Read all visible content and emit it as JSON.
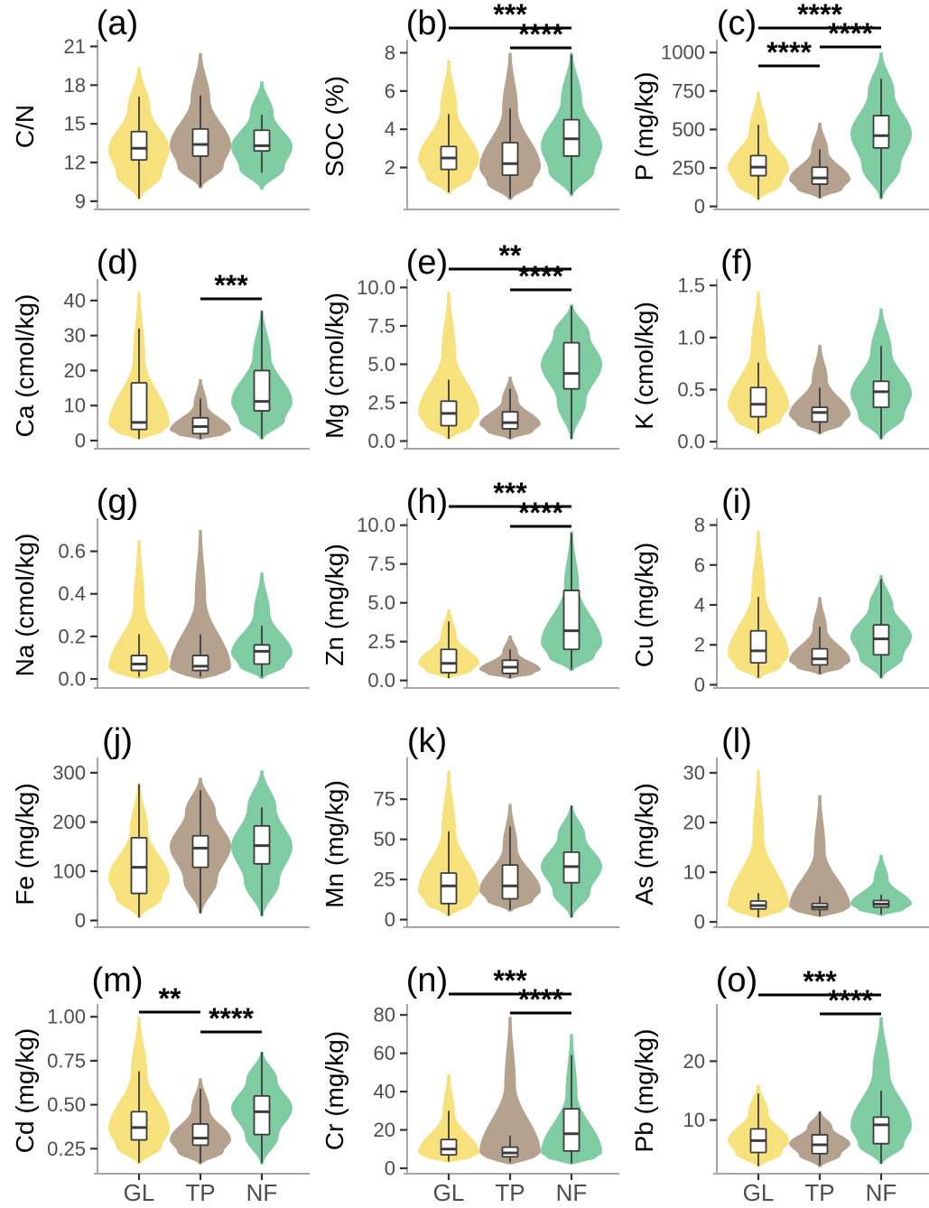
{
  "figure": {
    "groups": [
      "GL",
      "TP",
      "NF"
    ],
    "group_colors": {
      "GL": "#F6E17C",
      "TP": "#B4A18E",
      "NF": "#7FCBA2"
    },
    "x_axis_labels": [
      "GL",
      "TP",
      "NF"
    ],
    "style_colors": {
      "axis_line": "#A6A6A6",
      "tick_mark": "#333333",
      "tick_text": "#4D4D4D",
      "box_stroke": "#3C3C3C",
      "sig_bar": "#000000"
    }
  },
  "chart_data": [
    {
      "id": "a",
      "type": "violin",
      "label": "(a)",
      "ylabel": "C/N",
      "categories": [
        "GL",
        "TP",
        "NF"
      ],
      "yticks": [
        9,
        12,
        15,
        18,
        21
      ],
      "ytick_labels": [
        "9",
        "12",
        "15",
        "18",
        "21"
      ],
      "ylim": [
        8.5,
        21.1
      ],
      "stats": [
        {
          "vmin": 9.1,
          "vmax": 19.4,
          "peak": 13.0,
          "whisker_lo": 9.2,
          "q1": 12.2,
          "median": 13.1,
          "q3": 14.4,
          "whisker_hi": 17.1
        },
        {
          "vmin": 10.0,
          "vmax": 20.5,
          "peak": 13.3,
          "whisker_lo": 10.1,
          "q1": 12.5,
          "median": 13.4,
          "q3": 14.6,
          "whisker_hi": 17.2
        },
        {
          "vmin": 9.9,
          "vmax": 18.3,
          "peak": 13.2,
          "whisker_lo": 11.2,
          "q1": 12.9,
          "median": 13.3,
          "q3": 14.5,
          "whisker_hi": 15.7
        }
      ],
      "significance": []
    },
    {
      "id": "b",
      "type": "violin",
      "label": "(b)",
      "ylabel": "SOC (%)",
      "categories": [
        "GL",
        "TP",
        "NF"
      ],
      "yticks": [
        2,
        4,
        6,
        8
      ],
      "ytick_labels": [
        "2",
        "4",
        "6",
        "8"
      ],
      "ylim": [
        -0.1,
        8.4
      ],
      "stats": [
        {
          "vmin": 0.6,
          "vmax": 7.6,
          "peak": 2.4,
          "whisker_lo": 0.7,
          "q1": 1.9,
          "median": 2.5,
          "q3": 3.1,
          "whisker_hi": 4.8
        },
        {
          "vmin": 0.3,
          "vmax": 8.0,
          "peak": 2.0,
          "whisker_lo": 0.4,
          "q1": 1.6,
          "median": 2.2,
          "q3": 3.3,
          "whisker_hi": 5.1
        },
        {
          "vmin": 0.5,
          "vmax": 8.0,
          "peak": 3.1,
          "whisker_lo": 0.6,
          "q1": 2.6,
          "median": 3.5,
          "q3": 4.5,
          "whisker_hi": 7.9
        }
      ],
      "significance": [
        {
          "from": 0,
          "to": 2,
          "stars": "***",
          "bar_y": 31
        },
        {
          "from": 1,
          "to": 2,
          "stars": "****",
          "bar_y": 53
        }
      ]
    },
    {
      "id": "c",
      "type": "violin",
      "label": "(c)",
      "ylabel": "P (mg/kg)",
      "categories": [
        "GL",
        "TP",
        "NF"
      ],
      "yticks": [
        0,
        250,
        500,
        750,
        1000
      ],
      "ytick_labels": [
        "0",
        "250",
        "500",
        "750",
        "1000"
      ],
      "ylim": [
        -8,
        1048
      ],
      "stats": [
        {
          "vmin": 40,
          "vmax": 745,
          "peak": 245,
          "whisker_lo": 45,
          "q1": 200,
          "median": 255,
          "q3": 330,
          "whisker_hi": 530
        },
        {
          "vmin": 50,
          "vmax": 545,
          "peak": 175,
          "whisker_lo": 55,
          "q1": 145,
          "median": 185,
          "q3": 255,
          "whisker_hi": 370
        },
        {
          "vmin": 45,
          "vmax": 1000,
          "peak": 470,
          "whisker_lo": 55,
          "q1": 380,
          "median": 460,
          "q3": 590,
          "whisker_hi": 830
        }
      ],
      "significance": [
        {
          "from": 0,
          "to": 2,
          "stars": "****",
          "bar_y": 31
        },
        {
          "from": 1,
          "to": 2,
          "stars": "****",
          "bar_y": 52
        },
        {
          "from": 0,
          "to": 1,
          "stars": "****",
          "bar_y": 73
        }
      ]
    },
    {
      "id": "d",
      "type": "violin",
      "label": "(d)",
      "ylabel": "Ca (cmol/kg)",
      "categories": [
        "GL",
        "TP",
        "NF"
      ],
      "yticks": [
        0,
        10,
        20,
        30,
        40
      ],
      "ytick_labels": [
        "0",
        "10",
        "20",
        "30",
        "40"
      ],
      "ylim": [
        -1.8,
        44.6
      ],
      "stats": [
        {
          "vmin": 0.3,
          "vmax": 42.5,
          "peak": 4.5,
          "whisker_lo": 0.5,
          "q1": 3.2,
          "median": 5.2,
          "q3": 16.5,
          "whisker_hi": 32
        },
        {
          "vmin": 0.3,
          "vmax": 17.5,
          "peak": 3.0,
          "whisker_lo": 0.5,
          "q1": 2.0,
          "median": 4.0,
          "q3": 6.5,
          "whisker_hi": 12
        },
        {
          "vmin": 0.3,
          "vmax": 37.2,
          "peak": 11.0,
          "whisker_lo": 0.6,
          "q1": 8.5,
          "median": 11.2,
          "q3": 20.0,
          "whisker_hi": 37
        }
      ],
      "significance": [
        {
          "from": 1,
          "to": 2,
          "stars": "***",
          "bar_y": 66
        }
      ]
    },
    {
      "id": "e",
      "type": "violin",
      "label": "(e)",
      "ylabel": "Mg (cmol/kg)",
      "categories": [
        "GL",
        "TP",
        "NF"
      ],
      "yticks": [
        0,
        2.5,
        5,
        7.5,
        10
      ],
      "ytick_labels": [
        "0.0",
        "2.5",
        "5.0",
        "7.5",
        "10.0"
      ],
      "ylim": [
        -0.38,
        10.2
      ],
      "stats": [
        {
          "vmin": 0.1,
          "vmax": 9.7,
          "peak": 1.8,
          "whisker_lo": 0.15,
          "q1": 1.0,
          "median": 1.8,
          "q3": 2.6,
          "whisker_hi": 4.0
        },
        {
          "vmin": 0.1,
          "vmax": 4.2,
          "peak": 1.1,
          "whisker_lo": 0.15,
          "q1": 0.8,
          "median": 1.2,
          "q3": 1.9,
          "whisker_hi": 3.4
        },
        {
          "vmin": 0.1,
          "vmax": 8.9,
          "peak": 5.0,
          "whisker_lo": 0.15,
          "q1": 3.4,
          "median": 4.4,
          "q3": 6.4,
          "whisker_hi": 8.8
        }
      ],
      "significance": [
        {
          "from": 0,
          "to": 2,
          "stars": "**",
          "bar_y": 33
        },
        {
          "from": 1,
          "to": 2,
          "stars": "****",
          "bar_y": 56
        }
      ]
    },
    {
      "id": "f",
      "type": "violin",
      "label": "(f)",
      "ylabel": "K (cmol/kg)",
      "categories": [
        "GL",
        "TP",
        "NF"
      ],
      "yticks": [
        0,
        0.5,
        1,
        1.5
      ],
      "ytick_labels": [
        "0.0",
        "0.5",
        "1.0",
        "1.5"
      ],
      "ylim": [
        -0.05,
        1.51
      ],
      "stats": [
        {
          "vmin": 0.07,
          "vmax": 1.44,
          "peak": 0.34,
          "whisker_lo": 0.08,
          "q1": 0.24,
          "median": 0.36,
          "q3": 0.52,
          "whisker_hi": 0.76
        },
        {
          "vmin": 0.07,
          "vmax": 0.93,
          "peak": 0.26,
          "whisker_lo": 0.08,
          "q1": 0.19,
          "median": 0.28,
          "q3": 0.33,
          "whisker_hi": 0.52
        },
        {
          "vmin": 0.02,
          "vmax": 1.28,
          "peak": 0.46,
          "whisker_lo": 0.03,
          "q1": 0.33,
          "median": 0.48,
          "q3": 0.58,
          "whisker_hi": 0.92
        }
      ],
      "significance": []
    },
    {
      "id": "g",
      "type": "violin",
      "label": "(g)",
      "ylabel": "Na (cmol/kg)",
      "categories": [
        "GL",
        "TP",
        "NF"
      ],
      "yticks": [
        0,
        0.2,
        0.4,
        0.6
      ],
      "ytick_labels": [
        "0.0",
        "0.2",
        "0.4",
        "0.6"
      ],
      "ylim": [
        -0.034,
        0.73
      ],
      "stats": [
        {
          "vmin": 0.0,
          "vmax": 0.65,
          "peak": 0.05,
          "whisker_lo": 0.01,
          "q1": 0.04,
          "median": 0.07,
          "q3": 0.11,
          "whisker_hi": 0.21
        },
        {
          "vmin": 0.0,
          "vmax": 0.7,
          "peak": 0.05,
          "whisker_lo": 0.01,
          "q1": 0.04,
          "median": 0.06,
          "q3": 0.11,
          "whisker_hi": 0.21
        },
        {
          "vmin": 0.0,
          "vmax": 0.5,
          "peak": 0.12,
          "whisker_lo": 0.01,
          "q1": 0.07,
          "median": 0.13,
          "q3": 0.16,
          "whisker_hi": 0.25
        }
      ],
      "significance": []
    },
    {
      "id": "h",
      "type": "violin",
      "label": "(h)",
      "ylabel": "Zn (mg/kg)",
      "categories": [
        "GL",
        "TP",
        "NF"
      ],
      "yticks": [
        0,
        2.5,
        5,
        7.5,
        10
      ],
      "ytick_labels": [
        "0.0",
        "2.5",
        "5.0",
        "7.5",
        "10.0"
      ],
      "ylim": [
        -0.37,
        10.1
      ],
      "stats": [
        {
          "vmin": 0.1,
          "vmax": 4.6,
          "peak": 1.1,
          "whisker_lo": 0.15,
          "q1": 0.5,
          "median": 1.1,
          "q3": 2.0,
          "whisker_hi": 3.8
        },
        {
          "vmin": 0.1,
          "vmax": 2.9,
          "peak": 0.7,
          "whisker_lo": 0.15,
          "q1": 0.45,
          "median": 0.85,
          "q3": 1.3,
          "whisker_hi": 2.0
        },
        {
          "vmin": 0.6,
          "vmax": 9.6,
          "peak": 2.4,
          "whisker_lo": 0.7,
          "q1": 2.0,
          "median": 3.2,
          "q3": 5.8,
          "whisker_hi": 9.5
        }
      ],
      "significance": [
        {
          "from": 0,
          "to": 2,
          "stars": "***",
          "bar_y": 31
        },
        {
          "from": 1,
          "to": 2,
          "stars": "****",
          "bar_y": 53
        }
      ]
    },
    {
      "id": "i",
      "type": "violin",
      "label": "(i)",
      "ylabel": "Cu (mg/kg)",
      "categories": [
        "GL",
        "TP",
        "NF"
      ],
      "yticks": [
        0,
        2,
        4,
        6,
        8
      ],
      "ytick_labels": [
        "0",
        "2",
        "4",
        "6",
        "8"
      ],
      "ylim": [
        -0.07,
        8.07
      ],
      "stats": [
        {
          "vmin": 0.3,
          "vmax": 7.7,
          "peak": 1.5,
          "whisker_lo": 0.35,
          "q1": 1.1,
          "median": 1.7,
          "q3": 2.7,
          "whisker_hi": 4.4
        },
        {
          "vmin": 0.5,
          "vmax": 4.4,
          "peak": 1.2,
          "whisker_lo": 0.55,
          "q1": 1.0,
          "median": 1.3,
          "q3": 1.8,
          "whisker_hi": 2.9
        },
        {
          "vmin": 0.3,
          "vmax": 5.5,
          "peak": 2.4,
          "whisker_lo": 0.35,
          "q1": 1.5,
          "median": 2.3,
          "q3": 3.0,
          "whisker_hi": 5.3
        }
      ],
      "significance": []
    },
    {
      "id": "j",
      "type": "violin",
      "label": "(j)",
      "ylabel": "Fe (mg/kg)",
      "categories": [
        "GL",
        "TP",
        "NF"
      ],
      "yticks": [
        0,
        100,
        200,
        300
      ],
      "ytick_labels": [
        "0",
        "100",
        "200",
        "300"
      ],
      "ylim": [
        -10,
        320
      ],
      "stats": [
        {
          "vmin": 5,
          "vmax": 278,
          "peak": 85,
          "whisker_lo": 6,
          "q1": 55,
          "median": 108,
          "q3": 168,
          "whisker_hi": 277
        },
        {
          "vmin": 14,
          "vmax": 290,
          "peak": 150,
          "whisker_lo": 15,
          "q1": 108,
          "median": 147,
          "q3": 172,
          "whisker_hi": 265
        },
        {
          "vmin": 8,
          "vmax": 305,
          "peak": 150,
          "whisker_lo": 10,
          "q1": 115,
          "median": 152,
          "q3": 192,
          "whisker_hi": 230
        }
      ],
      "significance": []
    },
    {
      "id": "k",
      "type": "violin",
      "label": "(k)",
      "ylabel": "Mn (mg/kg)",
      "categories": [
        "GL",
        "TP",
        "NF"
      ],
      "yticks": [
        0,
        25,
        50,
        75
      ],
      "ytick_labels": [
        "0",
        "25",
        "50",
        "75"
      ],
      "ylim": [
        -3.6,
        97.6
      ],
      "stats": [
        {
          "vmin": 2,
          "vmax": 93,
          "peak": 18,
          "whisker_lo": 2.5,
          "q1": 10,
          "median": 21,
          "q3": 29,
          "whisker_hi": 55
        },
        {
          "vmin": 5,
          "vmax": 72,
          "peak": 18,
          "whisker_lo": 6,
          "q1": 13,
          "median": 21,
          "q3": 34,
          "whisker_hi": 58
        },
        {
          "vmin": 1,
          "vmax": 71,
          "peak": 33,
          "whisker_lo": 1.5,
          "q1": 23,
          "median": 33,
          "q3": 42,
          "whisker_hi": 71
        }
      ],
      "significance": []
    },
    {
      "id": "l",
      "type": "violin",
      "label": "(l)",
      "ylabel": "As (mg/kg)",
      "categories": [
        "GL",
        "TP",
        "NF"
      ],
      "yticks": [
        0,
        10,
        20,
        30
      ],
      "ytick_labels": [
        "0",
        "10",
        "20",
        "30"
      ],
      "ylim": [
        -0.7,
        32
      ],
      "stats": [
        {
          "vmin": 0.8,
          "vmax": 30.5,
          "peak": 3.3,
          "whisker_lo": 0.9,
          "q1": 2.6,
          "median": 3.3,
          "q3": 4.2,
          "whisker_hi": 5.8
        },
        {
          "vmin": 1.0,
          "vmax": 25.5,
          "peak": 3.0,
          "whisker_lo": 1.2,
          "q1": 2.5,
          "median": 3.0,
          "q3": 3.7,
          "whisker_hi": 5.2
        },
        {
          "vmin": 1.2,
          "vmax": 13.5,
          "peak": 3.6,
          "whisker_lo": 1.5,
          "q1": 3.0,
          "median": 3.6,
          "q3": 4.3,
          "whisker_hi": 5.5
        }
      ],
      "significance": []
    },
    {
      "id": "m",
      "type": "violin",
      "label": "(m)",
      "ylabel": "Cd (mg/kg)",
      "categories": [
        "GL",
        "TP",
        "NF"
      ],
      "yticks": [
        0.25,
        0.5,
        0.75,
        1.0
      ],
      "ytick_labels": [
        "0.25",
        "0.50",
        "0.75",
        "1.00"
      ],
      "ylim": [
        0.118,
        1.042
      ],
      "stats": [
        {
          "vmin": 0.16,
          "vmax": 1.0,
          "peak": 0.36,
          "whisker_lo": 0.17,
          "q1": 0.3,
          "median": 0.37,
          "q3": 0.46,
          "whisker_hi": 0.69
        },
        {
          "vmin": 0.16,
          "vmax": 0.65,
          "peak": 0.3,
          "whisker_lo": 0.17,
          "q1": 0.27,
          "median": 0.31,
          "q3": 0.39,
          "whisker_hi": 0.59
        },
        {
          "vmin": 0.16,
          "vmax": 0.8,
          "peak": 0.48,
          "whisker_lo": 0.17,
          "q1": 0.33,
          "median": 0.46,
          "q3": 0.55,
          "whisker_hi": 0.8
        }
      ],
      "significance": [
        {
          "from": 0,
          "to": 1,
          "stars": "**",
          "bar_y": 61
        },
        {
          "from": 1,
          "to": 2,
          "stars": "****",
          "bar_y": 83
        }
      ]
    },
    {
      "id": "n",
      "type": "violin",
      "label": "(n)",
      "ylabel": "Cr (mg/kg)",
      "categories": [
        "GL",
        "TP",
        "NF"
      ],
      "yticks": [
        0,
        20,
        40,
        60,
        80
      ],
      "ytick_labels": [
        "0",
        "20",
        "40",
        "60",
        "80"
      ],
      "ylim": [
        -1.9,
        82.9
      ],
      "stats": [
        {
          "vmin": 3,
          "vmax": 49,
          "peak": 8,
          "whisker_lo": 3.5,
          "q1": 7,
          "median": 10,
          "q3": 15,
          "whisker_hi": 30
        },
        {
          "vmin": 2,
          "vmax": 79,
          "peak": 8,
          "whisker_lo": 3,
          "q1": 6,
          "median": 8,
          "q3": 11,
          "whisker_hi": 17
        },
        {
          "vmin": 2,
          "vmax": 70,
          "peak": 8,
          "whisker_lo": 2.5,
          "q1": 9,
          "median": 18,
          "q3": 31,
          "whisker_hi": 59
        }
      ],
      "significance": [
        {
          "from": 0,
          "to": 2,
          "stars": "***",
          "bar_y": 41
        },
        {
          "from": 1,
          "to": 2,
          "stars": "****",
          "bar_y": 62
        }
      ]
    },
    {
      "id": "o",
      "type": "violin",
      "label": "(o)",
      "ylabel": "Pb (mg/kg)",
      "categories": [
        "GL",
        "TP",
        "NF"
      ],
      "yticks": [
        10,
        20
      ],
      "ytick_labels": [
        "10",
        "20"
      ],
      "ylim": [
        1.2,
        28.8
      ],
      "stats": [
        {
          "vmin": 2.0,
          "vmax": 16.0,
          "peak": 6.5,
          "whisker_lo": 2.2,
          "q1": 4.5,
          "median": 6.5,
          "q3": 8.5,
          "whisker_hi": 14.5
        },
        {
          "vmin": 2.0,
          "vmax": 11.5,
          "peak": 6.0,
          "whisker_lo": 2.3,
          "q1": 4.3,
          "median": 5.8,
          "q3": 7.5,
          "whisker_hi": 11.4
        },
        {
          "vmin": 2.5,
          "vmax": 27.5,
          "peak": 9.0,
          "whisker_lo": 2.6,
          "q1": 6.0,
          "median": 9.2,
          "q3": 10.5,
          "whisker_hi": 15.0
        }
      ],
      "significance": [
        {
          "from": 0,
          "to": 2,
          "stars": "***",
          "bar_y": 42
        },
        {
          "from": 1,
          "to": 2,
          "stars": "****",
          "bar_y": 63
        }
      ]
    }
  ]
}
